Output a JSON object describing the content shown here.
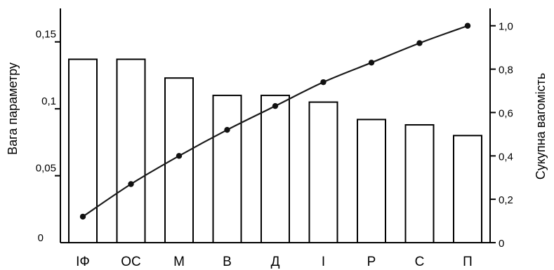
{
  "chart_data": {
    "type": "bar",
    "categories": [
      "ІФ",
      "ОС",
      "М",
      "В",
      "Д",
      "І",
      "Р",
      "С",
      "П"
    ],
    "series": [
      {
        "type": "bar",
        "axis": "left",
        "values": [
          0.137,
          0.137,
          0.123,
          0.11,
          0.11,
          0.105,
          0.092,
          0.088,
          0.08
        ]
      },
      {
        "type": "line",
        "axis": "right",
        "values": [
          0.12,
          0.27,
          0.4,
          0.52,
          0.63,
          0.74,
          0.83,
          0.92,
          1.0
        ]
      }
    ],
    "ylabel": "Вага параметру",
    "y2label": "Сукупна вагомість",
    "ylim": [
      0,
      0.175
    ],
    "y2lim": [
      0,
      1.08
    ],
    "yticks": [
      {
        "value": 0,
        "label": "0"
      },
      {
        "value": 0.05,
        "label": "0,05"
      },
      {
        "value": 0.1,
        "label": "0,1"
      },
      {
        "value": 0.15,
        "label": "0,15"
      }
    ],
    "y2ticks": [
      {
        "value": 0,
        "label": "0"
      },
      {
        "value": 0.2,
        "label": "0,2"
      },
      {
        "value": 0.4,
        "label": "0,4"
      },
      {
        "value": 0.6,
        "label": "0,6"
      },
      {
        "value": 0.8,
        "label": "0,8"
      },
      {
        "value": 1.0,
        "label": "1,0"
      }
    ],
    "grid": false,
    "legend": "none"
  }
}
